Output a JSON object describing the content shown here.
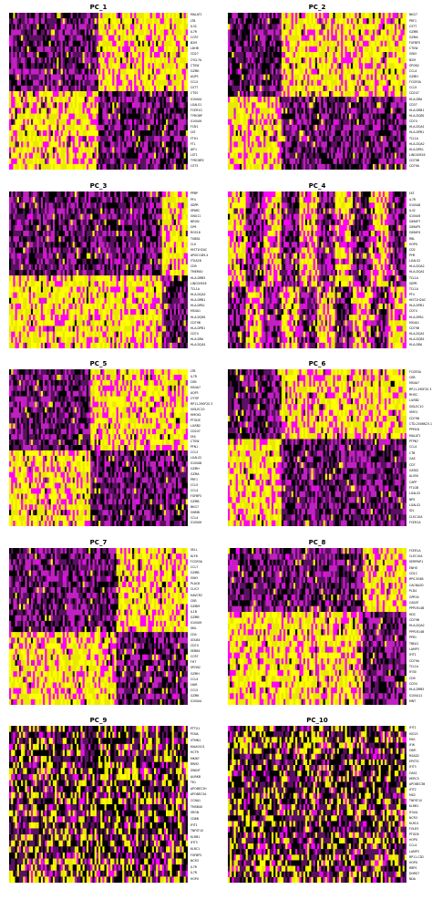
{
  "chart_data": [
    {
      "type": "heatmap",
      "title": "PC_1",
      "genes": [
        "MALAT1",
        "LTB",
        "IL32",
        "IL7R",
        "CCR7",
        "B2M",
        "LDHB",
        "CD27",
        "CYCL7A",
        "CTSW",
        "GZMK",
        "AQP3",
        "CCL5",
        "CST7",
        "CTSS",
        "S100A4",
        "LGALS1",
        "FCER1G",
        "TYROBP",
        "S100A9",
        "FCN1",
        "LYZ",
        "FTH1",
        "FTL",
        "AIF1",
        "LST1",
        "TYROBP2",
        "CST3"
      ],
      "colors": [
        "#000000",
        "#5a1060",
        "#c020c0",
        "#ff00ff",
        "#e8e800",
        "#ffff00"
      ],
      "pattern": "split",
      "split": 0.5,
      "split_row": 0.5,
      "seed": 11
    },
    {
      "type": "heatmap",
      "title": "PC_2",
      "genes": [
        "NKG7",
        "PRF1",
        "CST7",
        "GZMB",
        "GZMA",
        "FGFBP2",
        "CTSW",
        "GNLY",
        "B2M",
        "SPON2",
        "CCL4",
        "GZMH",
        "FCGR3A",
        "CCL5",
        "CD247",
        "HLA-DRA",
        "CD37",
        "HLA-DRB1",
        "HLA-DQB1",
        "CD74",
        "HLA-DQA1",
        "HLA-DPB1",
        "TCL1A",
        "HLA-DQA2",
        "HLA-DPA1",
        "LINC00926",
        "CD79B",
        "CD79A"
      ],
      "colors": [
        "#000000",
        "#5a1060",
        "#c020c0",
        "#ff00ff",
        "#e8e800",
        "#ffff00"
      ],
      "pattern": "split",
      "split": 0.3,
      "split_row": 0.55,
      "seed": 22
    },
    {
      "type": "heatmap",
      "title": "PC_3",
      "genes": [
        "PPBP",
        "PF4",
        "SDPR",
        "SPARC",
        "GNG11",
        "NRGN",
        "GP9",
        "RGS18",
        "TUBB1",
        "CLU",
        "HIST1H2AC",
        "AP001189.4",
        "ITGA2B",
        "CD9",
        "TMEM40",
        "HLA-DRB5",
        "LINC00926",
        "TCL1A",
        "HLA-DQA2",
        "HLA-DRB1",
        "HLA-DPA1",
        "MS4A1",
        "HLA-DQB1",
        "CD79B",
        "HLA-DPB1",
        "CD74",
        "HLA-DRA",
        "HLA-DQA1"
      ],
      "colors": [
        "#000000",
        "#5a1060",
        "#c020c0",
        "#ff00ff",
        "#e8e800",
        "#ffff00"
      ],
      "pattern": "split",
      "split": 0.85,
      "split_row": 0.52,
      "seed": 33
    },
    {
      "type": "heatmap",
      "title": "PC_4",
      "genes": [
        "LYZ",
        "IL7R",
        "S100A8",
        "IL32",
        "S100A9",
        "GIMAP7",
        "GIMAP5",
        "GIMAP4",
        "RBL",
        "HOPX",
        "CD2",
        "PYB",
        "LGALS2",
        "HLA-DQA2",
        "HLA-DQA1",
        "TCL1A",
        "SDPR",
        "TCL1A",
        "PF4",
        "HIST1H2AC",
        "HLA-DPB1",
        "CD74",
        "HLA-DPA1",
        "MS4A1",
        "CD79B",
        "HLA-DQA1",
        "HLA-DQB1",
        "HLA-DRA"
      ],
      "colors": [
        "#000000",
        "#5a1060",
        "#c020c0",
        "#ff00ff",
        "#e8e800",
        "#ffff00"
      ],
      "pattern": "stripes",
      "split": 0.4,
      "split_row": 0.6,
      "seed": 44
    },
    {
      "type": "heatmap",
      "title": "PC_5",
      "genes": [
        "LTB",
        "IL7R",
        "CKB",
        "MS4A7",
        "AQP3",
        "CYTIP",
        "RP11-290F20.3",
        "SIGLEC10",
        "HMOX1",
        "PTGDS",
        "LILRB2",
        "CD247",
        "FAS",
        "CTSW",
        "PFN1",
        "CCL3",
        "LGALS2",
        "S100A8",
        "GZMH",
        "GZMA",
        "PRF1",
        "CCL5",
        "CCL4",
        "FGFBP2",
        "GZMB",
        "NKG7",
        "GNMB",
        "CCL4",
        "S100A9"
      ],
      "colors": [
        "#000000",
        "#5a1060",
        "#c020c0",
        "#ff00ff",
        "#e8e800",
        "#ffff00"
      ],
      "pattern": "split",
      "split": 0.45,
      "split_row": 0.5,
      "seed": 55
    },
    {
      "type": "heatmap",
      "title": "PC_6",
      "genes": [
        "FCGR3A",
        "CKB",
        "MS4A7",
        "RP11-290F20.3",
        "RHOC",
        "LILRB2",
        "SIGLEC10",
        "VMO1",
        "CD79B",
        "CTD-2006K23.1",
        "PPM1N",
        "MALAT1",
        "PTPN7",
        "CCL4",
        "CTB",
        "GAS",
        "CD7",
        "GATA2",
        "AL050",
        "CAPP",
        "FTLGB",
        "LGALS2",
        "NPS",
        "LGALS2",
        "ID1",
        "CLEC10A",
        "FCER1A"
      ],
      "colors": [
        "#000000",
        "#5a1060",
        "#c020c0",
        "#ff00ff",
        "#e8e800",
        "#ffff00"
      ],
      "pattern": "split",
      "split": 0.3,
      "split_row": 0.45,
      "seed": 66
    },
    {
      "type": "heatmap",
      "title": "PC_7",
      "genes": [
        "SELL",
        "KLF6",
        "FCGR3A",
        "CCL7",
        "GZMB",
        "GNLY",
        "PLAC8",
        "CLIC3",
        "HAVCR2",
        "CKB",
        "GZMM",
        "IL1B",
        "GZMB",
        "S100A9",
        "SKIL",
        "CD4",
        "SOLB4",
        "CD74",
        "SEBB4",
        "CCR7",
        "FHT",
        "SPON2",
        "GZMH",
        "CCL4",
        "LYAR",
        "CCL5",
        "GZMK",
        "S100A4"
      ],
      "colors": [
        "#000000",
        "#5a1060",
        "#c020c0",
        "#ff00ff",
        "#e8e800",
        "#ffff00"
      ],
      "pattern": "split",
      "split": 0.6,
      "split_row": 0.55,
      "seed": 77
    },
    {
      "type": "heatmap",
      "title": "PC_8",
      "genes": [
        "FCER1A",
        "CLEC10A",
        "SERPINF1",
        "ENHO",
        "CD1C",
        "RPS-304B",
        "CACNA2D",
        "PLD4",
        "GPR34",
        "CASAT",
        "PPP1R14B",
        "HDC",
        "CD79B",
        "HLA-DQA2",
        "PPP1R14B",
        "PPR1",
        "TBEA1",
        "LAMP3",
        "IFIT1",
        "CD79A",
        "TCL1A",
        "IFI30",
        "CD9",
        "CD34",
        "HLA-DRB5",
        "S100A12",
        "MNT"
      ],
      "colors": [
        "#000000",
        "#5a1060",
        "#c020c0",
        "#ff00ff",
        "#e8e800",
        "#ffff00"
      ],
      "pattern": "split",
      "split": 0.75,
      "split_row": 0.4,
      "seed": 88
    },
    {
      "type": "heatmap",
      "title": "PC_9",
      "genes": [
        "PTTG1",
        "PCNA",
        "STMN1",
        "KIAA0101",
        "HCTR",
        "MKI67",
        "RRM2",
        "ZWINT",
        "AURKB",
        "TK1",
        "APOBEC3H",
        "APOBEC3A",
        "CCNA1",
        "TMSB4X",
        "SRGN",
        "CD8B",
        "IFIT1",
        "TNFSF10",
        "KLRB1",
        "IFIT3",
        "KLRC1",
        "FGFBP2",
        "NCR3",
        "IL7R",
        "IL7R",
        "HOPX"
      ],
      "colors": [
        "#000000",
        "#5a1060",
        "#c020c0",
        "#ff00ff",
        "#e8e800",
        "#ffff00"
      ],
      "pattern": "sparse",
      "split": 0.5,
      "split_row": 0.5,
      "seed": 99
    },
    {
      "type": "heatmap",
      "title": "PC_10",
      "genes": [
        "IFIT1",
        "ISG15",
        "MX1",
        "IFI6",
        "OBFI",
        "RSAD2",
        "EPSTI1",
        "IFIT3",
        "OAS1",
        "HERC5",
        "APOBEC3B",
        "IFIT2",
        "MX2",
        "TNFSF10",
        "KLRB1",
        "IFI44L",
        "NCR3",
        "KLRC4",
        "FOLR3",
        "PTGDS",
        "HOPX",
        "CCL4",
        "LAMP3",
        "RP11-CD2",
        "HOPX",
        "RBPS",
        "DHRS7",
        "NDA"
      ],
      "colors": [
        "#000000",
        "#5a1060",
        "#c020c0",
        "#ff00ff",
        "#e8e800",
        "#ffff00"
      ],
      "pattern": "sparse",
      "split": 0.5,
      "split_row": 0.5,
      "seed": 110
    }
  ]
}
